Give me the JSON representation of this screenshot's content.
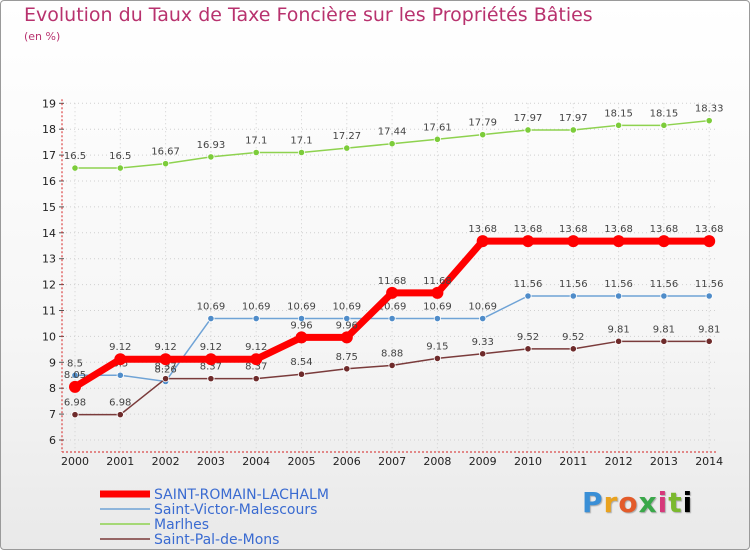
{
  "chart_data": {
    "type": "line",
    "title": "Evolution du Taux de Taxe Foncière sur les Propriétés Bâties",
    "unit_label": "(en %)",
    "xlabel": "",
    "ylabel": "",
    "x": [
      "2000",
      "2001",
      "2002",
      "2003",
      "2004",
      "2005",
      "2006",
      "2007",
      "2008",
      "2009",
      "2010",
      "2011",
      "2012",
      "2013",
      "2014"
    ],
    "ylim": [
      6,
      19
    ],
    "yticks": [
      "6",
      "7",
      "8",
      "9",
      "10",
      "11",
      "12",
      "13",
      "14",
      "15",
      "16",
      "17",
      "18",
      "19"
    ],
    "grid": true,
    "legend_position": "bottom-left",
    "series": [
      {
        "name": "Marlhes",
        "color": "#8ed24f",
        "point_color": "#7ccc3a",
        "values": [
          16.5,
          16.5,
          16.67,
          16.93,
          17.1,
          17.1,
          17.27,
          17.44,
          17.61,
          17.79,
          17.97,
          17.97,
          18.15,
          18.15,
          18.33
        ],
        "labels": [
          "16.5",
          "16.5",
          "16.67",
          "16.93",
          "17.1",
          "17.1",
          "17.27",
          "17.44",
          "17.61",
          "17.79",
          "17.97",
          "17.97",
          "18.15",
          "18.15",
          "18.33"
        ]
      },
      {
        "name": "Saint-Victor-Malescours",
        "color": "#6fa3d6",
        "point_color": "#4f8cc9",
        "values": [
          8.5,
          8.5,
          8.26,
          10.69,
          10.69,
          10.69,
          10.69,
          10.69,
          10.69,
          10.69,
          11.56,
          11.56,
          11.56,
          11.56,
          11.56
        ],
        "labels": [
          "8.5",
          "8.5",
          "8.26",
          "10.69",
          "10.69",
          "10.69",
          "10.69",
          "10.69",
          "10.69",
          "10.69",
          "11.56",
          "11.56",
          "11.56",
          "11.56",
          "11.56"
        ]
      },
      {
        "name": "Saint-Pal-de-Mons",
        "color": "#7a3b3b",
        "point_color": "#6e2b2b",
        "values": [
          6.98,
          6.98,
          8.37,
          8.37,
          8.37,
          8.54,
          8.75,
          8.88,
          9.15,
          9.33,
          9.52,
          9.52,
          9.81,
          9.81,
          9.81
        ],
        "labels": [
          "6.98",
          "6.98",
          "8.37",
          "8.37",
          "8.37",
          "8.54",
          "8.75",
          "8.88",
          "9.15",
          "9.33",
          "9.52",
          "9.52",
          "9.81",
          "9.81",
          "9.81"
        ]
      },
      {
        "name": "SAINT-ROMAIN-LACHALM",
        "color": "#ff0000",
        "point_color": "#ff0000",
        "values": [
          8.05,
          9.12,
          9.12,
          9.12,
          9.12,
          9.96,
          9.96,
          11.68,
          11.68,
          13.68,
          13.68,
          13.68,
          13.68,
          13.68,
          13.68
        ],
        "labels": [
          "8.05",
          "9.12",
          "9.12",
          "9.12",
          "9.12",
          "9.96",
          "9.96",
          "11.68",
          "11.68",
          "13.68",
          "13.68",
          "13.68",
          "13.68",
          "13.68",
          "13.68"
        ]
      }
    ],
    "legend": [
      "SAINT-ROMAIN-LACHALM",
      "Saint-Victor-Malescours",
      "Marlhes",
      "Saint-Pal-de-Mons"
    ]
  },
  "logo_text": "Proxiti"
}
